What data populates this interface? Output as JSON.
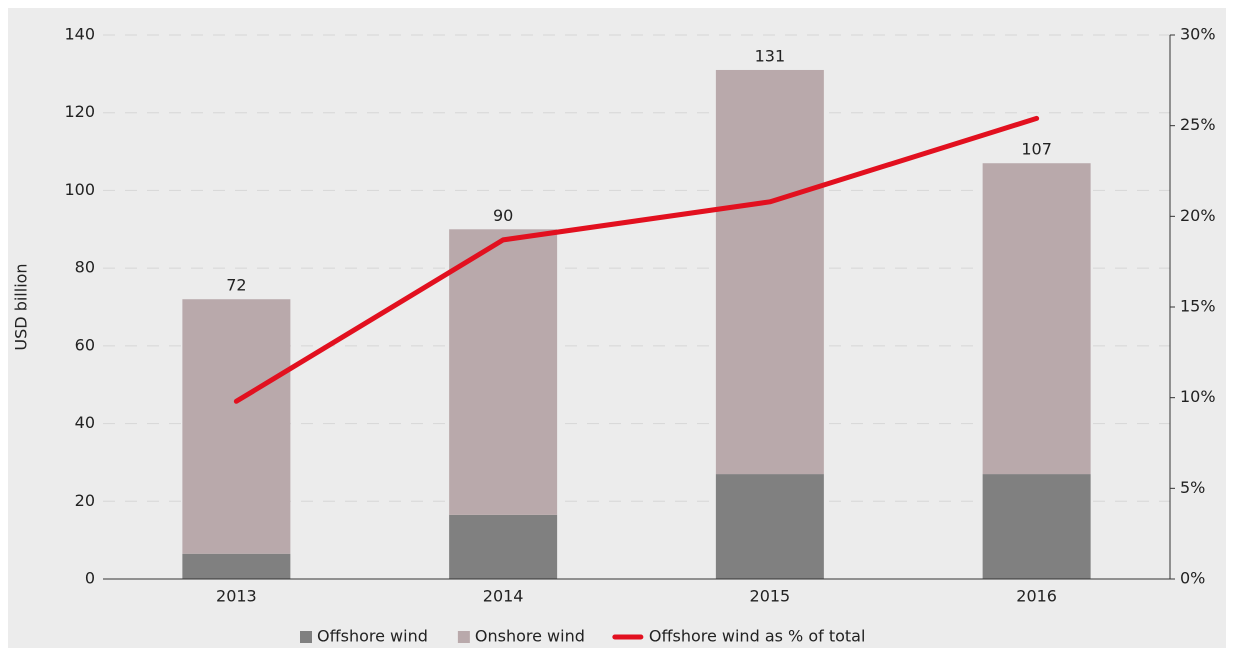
{
  "chart_data": {
    "type": "bar_line",
    "ylabel": "USD billion",
    "categories": [
      "2013",
      "2014",
      "2015",
      "2016"
    ],
    "series": [
      {
        "name": "Offshore wind",
        "color": "#808080",
        "values": [
          6.5,
          16.5,
          27,
          27
        ]
      },
      {
        "name": "Onshore wind",
        "color": "#b9a9ab",
        "values": [
          65.5,
          73.5,
          104,
          80
        ]
      },
      {
        "name": "Offshore wind as % of total",
        "color": "#e2101f",
        "axis": "y2",
        "values": [
          9.8,
          18.7,
          20.8,
          25.4
        ]
      }
    ],
    "totals": [
      72,
      90,
      131,
      107
    ],
    "ylim": [
      0,
      140
    ],
    "yticks": [
      0,
      20,
      40,
      60,
      80,
      100,
      120,
      140
    ],
    "y2lim": [
      0,
      30
    ],
    "y2ticks": [
      {
        "value": 0,
        "label": "0%"
      },
      {
        "value": 5,
        "label": "5%"
      },
      {
        "value": 10,
        "label": "10%"
      },
      {
        "value": 15,
        "label": "15%"
      },
      {
        "value": 20,
        "label": "20%"
      },
      {
        "value": 25,
        "label": "25%"
      },
      {
        "value": 30,
        "label": "30%"
      }
    ],
    "grid": true
  }
}
